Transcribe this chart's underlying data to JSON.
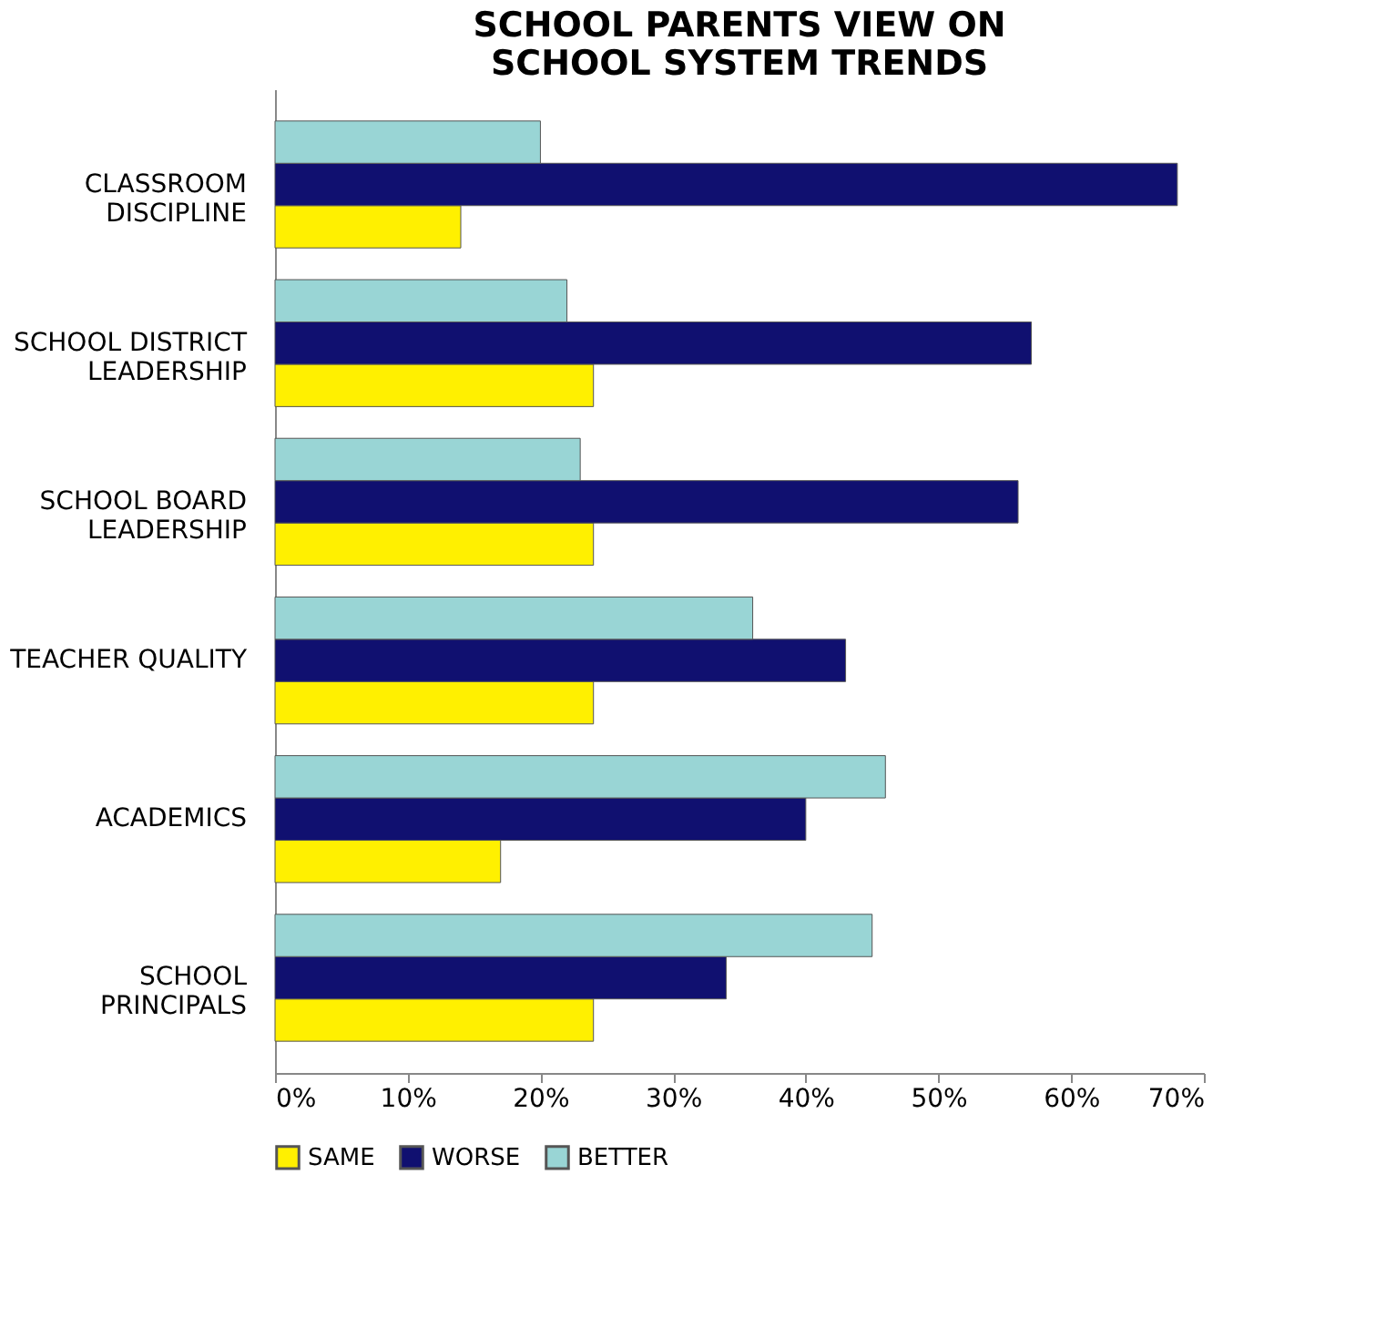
{
  "chart_data": {
    "type": "bar",
    "orientation": "horizontal",
    "title": "SCHOOL PARENTS VIEW ON\nSCHOOL SYSTEM TRENDS",
    "categories": [
      "CLASSROOM\nDISCIPLINE",
      "SCHOOL DISTRICT\nLEADERSHIP",
      "SCHOOL BOARD\nLEADERSHIP",
      "TEACHER QUALITY",
      "ACADEMICS",
      "SCHOOL\nPRINCIPALS"
    ],
    "series": [
      {
        "name": "SAME",
        "color": "#fff000",
        "values": [
          14,
          24,
          24,
          24,
          17,
          24
        ]
      },
      {
        "name": "WORSE",
        "color": "#101070",
        "values": [
          68,
          57,
          56,
          43,
          40,
          34
        ]
      },
      {
        "name": "BETTER",
        "color": "#99d5d5",
        "values": [
          20,
          22,
          23,
          36,
          46,
          45
        ]
      }
    ],
    "xlim": [
      0,
      70
    ],
    "xticks": [
      {
        "value": 0,
        "label": "0%"
      },
      {
        "value": 10,
        "label": "10%"
      },
      {
        "value": 20,
        "label": "20%"
      },
      {
        "value": 30,
        "label": "30%"
      },
      {
        "value": 40,
        "label": "40%"
      },
      {
        "value": 50,
        "label": "50%"
      },
      {
        "value": 60,
        "label": "60%"
      },
      {
        "value": 70,
        "label": "70%"
      }
    ],
    "grid": false,
    "legend": "bottom"
  }
}
